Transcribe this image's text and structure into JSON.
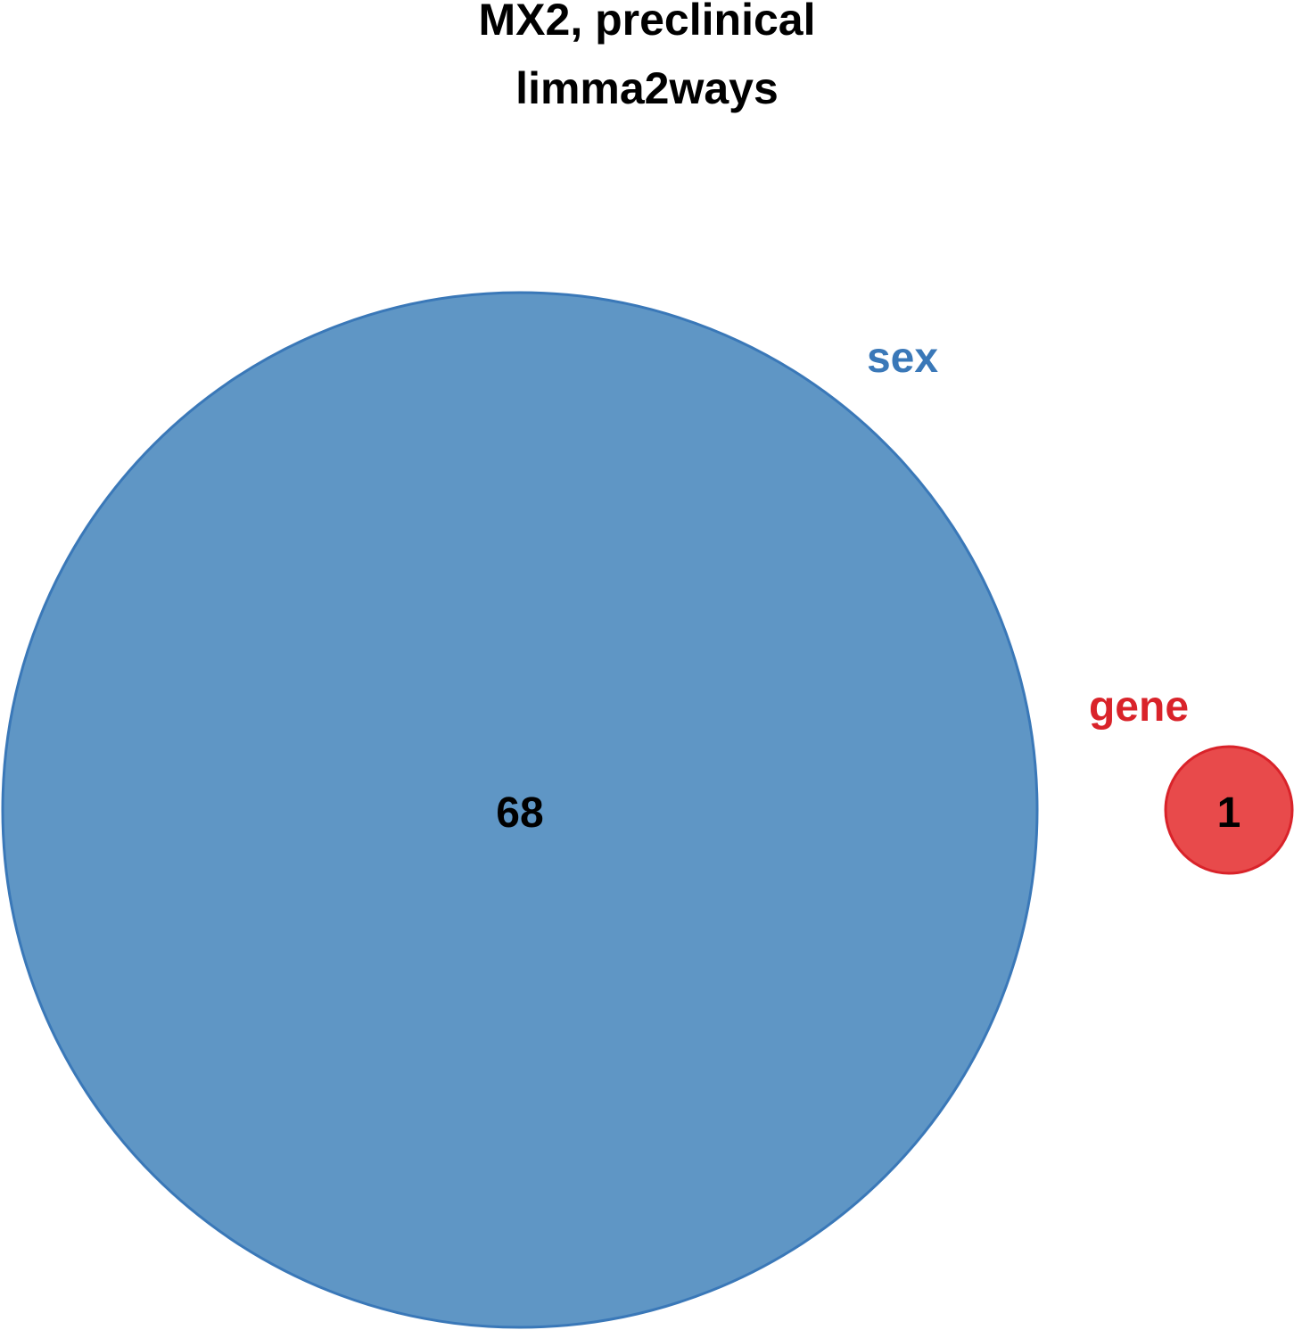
{
  "title": {
    "line1": "MX2, preclinical",
    "line2": "limma2ways"
  },
  "chart_data": {
    "type": "venn",
    "sets": [
      {
        "name": "sex",
        "count": 68,
        "fill": "#5f96c5",
        "stroke": "#3a78b8",
        "label_color": "#3a78b8"
      },
      {
        "name": "gene",
        "count": 1,
        "fill": "#e84a4b",
        "stroke": "#d9232a",
        "label_color": "#d9232a"
      }
    ],
    "overlap": 0
  }
}
